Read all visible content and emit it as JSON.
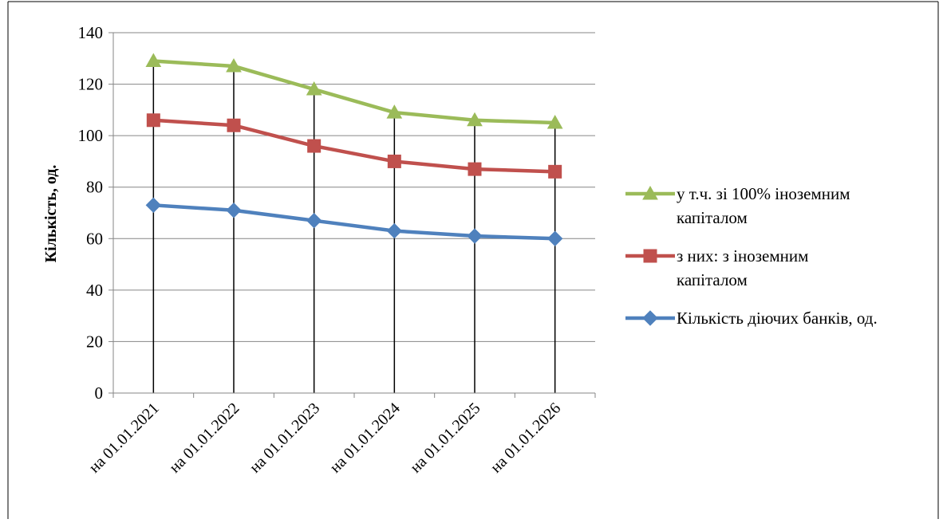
{
  "chart_data": {
    "type": "line",
    "title": "",
    "xlabel": "",
    "ylabel": "Кількість, од.",
    "ylim": [
      0,
      140
    ],
    "yticks": [
      0,
      20,
      40,
      60,
      80,
      100,
      120,
      140
    ],
    "categories": [
      "на 01.01.2021",
      "на 01.01.2022",
      "на 01.01.2023",
      "на 01.01.2024",
      "на 01.01.2025",
      "на 01.01.2026"
    ],
    "grid": true,
    "drop_lines": true,
    "legend_position": "right",
    "series": [
      {
        "name": "Кількість діючих банків, од.",
        "values": [
          73,
          71,
          67,
          63,
          61,
          60
        ],
        "color": "#4F81BD",
        "marker": "diamond",
        "legend_lines": [
          "Кількість діючих банків, од."
        ]
      },
      {
        "name": "з них: з іноземним капіталом",
        "values": [
          106,
          104,
          96,
          90,
          87,
          86
        ],
        "color": "#C0504D",
        "marker": "square",
        "legend_lines": [
          "з них: з іноземним",
          "капіталом"
        ]
      },
      {
        "name": "у т.ч. зі 100% іноземним капіталом",
        "values": [
          129,
          127,
          118,
          109,
          106,
          105
        ],
        "color": "#9BBB59",
        "marker": "triangle",
        "legend_lines": [
          "у т.ч. зі 100% іноземним",
          "капіталом"
        ]
      }
    ],
    "legend_order": [
      2,
      1,
      0
    ]
  }
}
